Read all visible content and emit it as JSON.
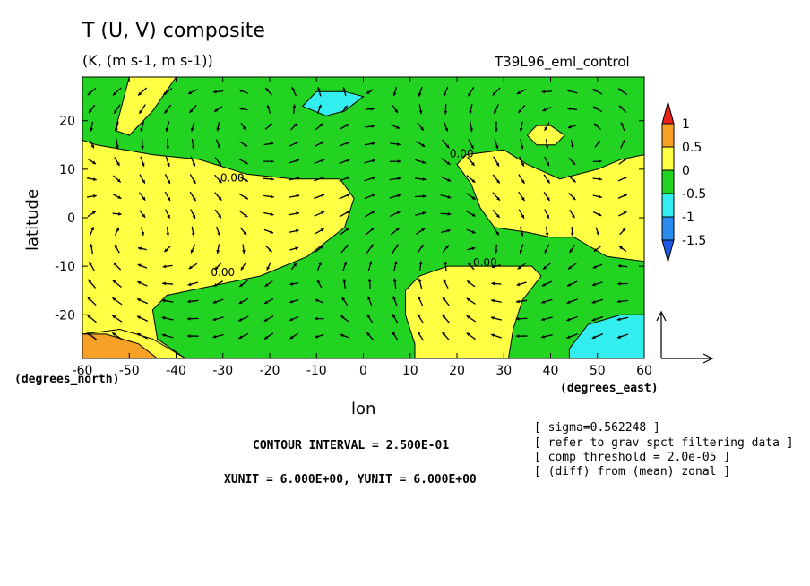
{
  "chart_data": {
    "type": "contour_vector",
    "title": "T (U, V) composite",
    "subtitle": "(K, (m s-1, m s-1))",
    "experiment": "T39L96_eml_control",
    "xlabel": "lon",
    "ylabel": "latitude",
    "x_unit_label": "(degrees_east)",
    "y_unit_label": "(degrees_north)",
    "xlim": [
      -60,
      60
    ],
    "ylim": [
      -29,
      29
    ],
    "x_ticks": [
      -60,
      -50,
      -40,
      -30,
      -20,
      -10,
      0,
      10,
      20,
      30,
      40,
      50,
      60
    ],
    "y_ticks": [
      -20,
      -10,
      0,
      10,
      20
    ],
    "colorbar": {
      "levels": [
        1,
        0.5,
        0,
        -0.5,
        -1,
        -1.5
      ],
      "colors": [
        "#e8231e",
        "#f7a226",
        "#ffff44",
        "#22d322",
        "#33eeee",
        "#2b8cf0",
        "#1a5ae6"
      ]
    },
    "contour_labels": [
      "0.00",
      "0.00",
      "0.00",
      "0.00"
    ],
    "contour_interval": "CONTOUR INTERVAL = 2.500E-01",
    "vector_units": "XUNIT = 6.000E+00, YUNIT = 6.000E+00",
    "notes": [
      "[ sigma=0.562248 ]",
      "[ refer to grav spct filtering data ]",
      "[ comp threshold = 2.0e-05 ]",
      "[ (diff) from (mean) zonal ]"
    ],
    "regions": [
      {
        "level": "0 to 0.5",
        "color": "#ffff44",
        "points": [
          [
            -60,
            29
          ],
          [
            -60,
            16
          ],
          [
            -57,
            15
          ],
          [
            -45,
            13
          ],
          [
            -35,
            12
          ],
          [
            -25,
            9
          ],
          [
            -15,
            8
          ],
          [
            -5,
            8
          ],
          [
            -2,
            4
          ],
          [
            -4,
            -2
          ],
          [
            -12,
            -8
          ],
          [
            -22,
            -12
          ],
          [
            -32,
            -14
          ],
          [
            -42,
            -16
          ],
          [
            -45,
            -19
          ],
          [
            -44,
            -25
          ],
          [
            -38,
            -29
          ],
          [
            -60,
            -29
          ]
        ]
      },
      {
        "level": "0 to 0.5",
        "color": "#ffff44",
        "points": [
          [
            -50,
            29
          ],
          [
            -53,
            18
          ],
          [
            -50,
            17
          ],
          [
            -45,
            22
          ],
          [
            -40,
            29
          ]
        ]
      },
      {
        "level": "0 to 0.5",
        "color": "#ffff44",
        "points": [
          [
            -60,
            -29
          ],
          [
            -60,
            -24
          ],
          [
            -52,
            -23
          ],
          [
            -45,
            -25
          ],
          [
            -38,
            -29
          ]
        ]
      },
      {
        "level": "0 to 0.5",
        "color": "#ffff44",
        "points": [
          [
            20,
            11
          ],
          [
            22,
            13
          ],
          [
            30,
            14
          ],
          [
            35,
            11
          ],
          [
            42,
            8
          ],
          [
            50,
            10
          ],
          [
            55,
            12
          ],
          [
            60,
            13
          ],
          [
            60,
            -9
          ],
          [
            52,
            -8
          ],
          [
            45,
            -4
          ],
          [
            40,
            -4
          ],
          [
            35,
            -3
          ],
          [
            28,
            -2
          ],
          [
            25,
            2
          ],
          [
            23,
            7
          ]
        ]
      },
      {
        "level": "0 to 0.5",
        "color": "#ffff44",
        "points": [
          [
            9,
            -15
          ],
          [
            12,
            -12
          ],
          [
            18,
            -10
          ],
          [
            26,
            -10
          ],
          [
            36,
            -10
          ],
          [
            38,
            -12
          ],
          [
            34,
            -17
          ],
          [
            32,
            -23
          ],
          [
            31,
            -29
          ],
          [
            11,
            -29
          ],
          [
            11,
            -26
          ],
          [
            9,
            -20
          ]
        ]
      },
      {
        "level": "0 to 0.5",
        "color": "#ffff44",
        "points": [
          [
            35,
            17
          ],
          [
            37,
            19
          ],
          [
            40,
            19
          ],
          [
            43,
            17
          ],
          [
            41,
            15
          ],
          [
            37,
            15
          ]
        ]
      },
      {
        "level": "0.5 to 1",
        "color": "#f7a226",
        "points": [
          [
            -60,
            -29
          ],
          [
            -60,
            -24
          ],
          [
            -55,
            -24
          ],
          [
            -48,
            -26
          ],
          [
            -44,
            -29
          ]
        ]
      },
      {
        "level": "-1 to -0.5",
        "color": "#33eeee",
        "points": [
          [
            -13,
            23
          ],
          [
            -10,
            26
          ],
          [
            -4,
            26
          ],
          [
            0,
            25
          ],
          [
            -4,
            22
          ],
          [
            -8,
            21
          ]
        ]
      },
      {
        "level": "-1 to -0.5",
        "color": "#33eeee",
        "points": [
          [
            44,
            -27
          ],
          [
            48,
            -22
          ],
          [
            55,
            -20
          ],
          [
            60,
            -20
          ],
          [
            60,
            -29
          ],
          [
            44,
            -29
          ]
        ]
      }
    ]
  }
}
